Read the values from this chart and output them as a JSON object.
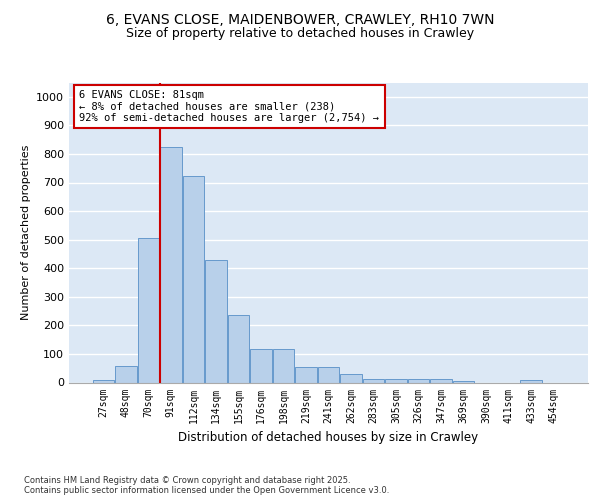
{
  "title_line1": "6, EVANS CLOSE, MAIDENBOWER, CRAWLEY, RH10 7WN",
  "title_line2": "Size of property relative to detached houses in Crawley",
  "xlabel": "Distribution of detached houses by size in Crawley",
  "ylabel": "Number of detached properties",
  "bar_labels": [
    "27sqm",
    "48sqm",
    "70sqm",
    "91sqm",
    "112sqm",
    "134sqm",
    "155sqm",
    "176sqm",
    "198sqm",
    "219sqm",
    "241sqm",
    "262sqm",
    "283sqm",
    "305sqm",
    "326sqm",
    "347sqm",
    "369sqm",
    "390sqm",
    "411sqm",
    "433sqm",
    "454sqm"
  ],
  "bar_values": [
    10,
    57,
    507,
    825,
    723,
    428,
    238,
    118,
    118,
    56,
    56,
    30,
    14,
    14,
    14,
    12,
    5,
    0,
    0,
    10,
    0
  ],
  "bar_color": "#b8d0ea",
  "bar_edge_color": "#6699cc",
  "vline_color": "#cc0000",
  "annotation_text": "6 EVANS CLOSE: 81sqm\n← 8% of detached houses are smaller (238)\n92% of semi-detached houses are larger (2,754) →",
  "annotation_box_color": "#cc0000",
  "annotation_fontsize": 7.5,
  "ylim": [
    0,
    1050
  ],
  "yticks": [
    0,
    100,
    200,
    300,
    400,
    500,
    600,
    700,
    800,
    900,
    1000
  ],
  "background_color": "#dce8f5",
  "grid_color": "#ffffff",
  "footer_text": "Contains HM Land Registry data © Crown copyright and database right 2025.\nContains public sector information licensed under the Open Government Licence v3.0.",
  "title_fontsize": 10,
  "subtitle_fontsize": 9
}
